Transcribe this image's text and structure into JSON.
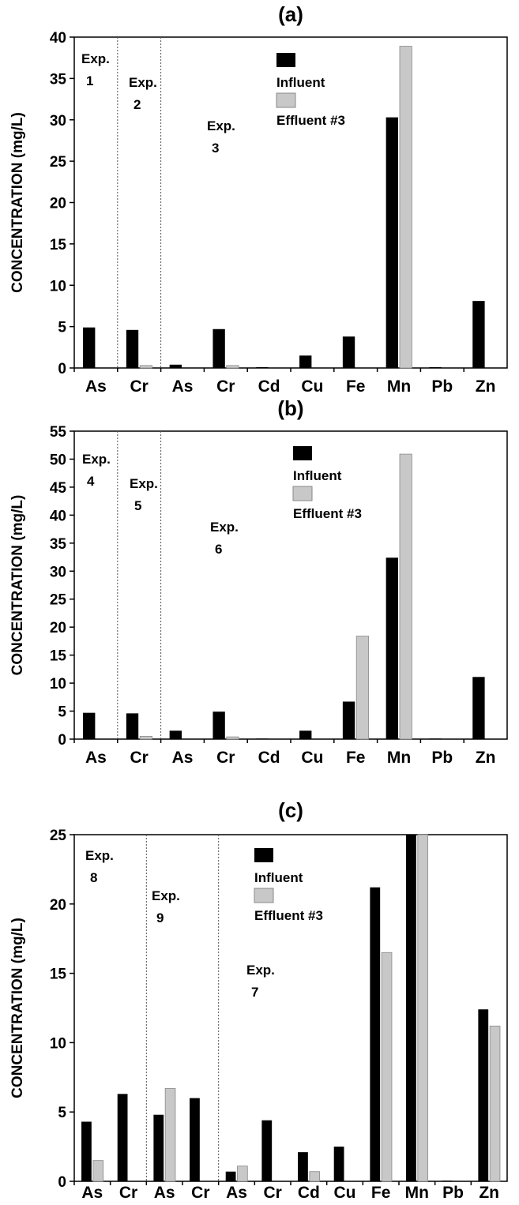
{
  "colors": {
    "influent": "#000000",
    "effluent": "#c8c8c8",
    "axis": "#000000",
    "divider": "#555555"
  },
  "chart_data": [
    {
      "type": "bar",
      "title": "(a)",
      "ylabel": "CONCENTRATION (mg/L)",
      "ylim": [
        0,
        40
      ],
      "yticks": [
        0,
        5,
        10,
        15,
        20,
        25,
        30,
        35,
        40
      ],
      "categories": [
        "As",
        "Cr",
        "As",
        "Cr",
        "Cd",
        "Cu",
        "Fe",
        "Mn",
        "Pb",
        "Zn"
      ],
      "series": [
        {
          "name": "Influent",
          "values": [
            4.9,
            4.6,
            0.4,
            4.7,
            0.1,
            1.5,
            3.8,
            30.3,
            0.1,
            8.1
          ]
        },
        {
          "name": "Effluent #3",
          "values": [
            0,
            0.3,
            0,
            0.3,
            0,
            0,
            0,
            38.9,
            0,
            0
          ]
        }
      ],
      "dividers_after": [
        0,
        1
      ],
      "annotations": [
        {
          "line1": "Exp.",
          "line2": "1"
        },
        {
          "line1": "Exp.",
          "line2": "2"
        },
        {
          "line1": "Exp.",
          "line2": "3"
        }
      ],
      "legend": [
        "Influent",
        "Effluent #3"
      ]
    },
    {
      "type": "bar",
      "title": "(b)",
      "ylabel": "CONCENTRATION (mg/L)",
      "ylim": [
        0,
        55
      ],
      "yticks": [
        0,
        5,
        10,
        15,
        20,
        25,
        30,
        35,
        40,
        45,
        50,
        55
      ],
      "categories": [
        "As",
        "Cr",
        "As",
        "Cr",
        "Cd",
        "Cu",
        "Fe",
        "Mn",
        "Pb",
        "Zn"
      ],
      "series": [
        {
          "name": "Influent",
          "values": [
            4.7,
            4.6,
            1.5,
            4.9,
            0.1,
            1.5,
            6.7,
            32.4,
            0.1,
            11.1
          ]
        },
        {
          "name": "Effluent #3",
          "values": [
            0,
            0.5,
            0,
            0.4,
            0,
            0,
            18.4,
            50.9,
            0,
            0
          ]
        }
      ],
      "dividers_after": [
        0,
        1
      ],
      "annotations": [
        {
          "line1": "Exp.",
          "line2": "4"
        },
        {
          "line1": "Exp.",
          "line2": "5"
        },
        {
          "line1": "Exp.",
          "line2": "6"
        }
      ],
      "legend": [
        "Influent",
        "Effluent #3"
      ]
    },
    {
      "type": "bar",
      "title": "(c)",
      "ylabel": "CONCENTRATION (mg/L)",
      "ylim": [
        0,
        25
      ],
      "yticks": [
        0,
        5,
        10,
        15,
        20,
        25
      ],
      "categories": [
        "As",
        "Cr",
        "As",
        "Cr",
        "As",
        "Cr",
        "Cd",
        "Cu",
        "Fe",
        "Mn",
        "Pb",
        "Zn"
      ],
      "series": [
        {
          "name": "Influent",
          "values": [
            4.3,
            6.3,
            4.8,
            6.0,
            0.7,
            4.4,
            2.1,
            2.5,
            21.2,
            25.0,
            0.05,
            12.4
          ]
        },
        {
          "name": "Effluent #3",
          "values": [
            1.5,
            0,
            6.7,
            0,
            1.1,
            0,
            0.7,
            0,
            16.5,
            25.0,
            0,
            11.2
          ]
        }
      ],
      "dividers_after": [
        1,
        3
      ],
      "annotations": [
        {
          "line1": "Exp.",
          "line2": "8"
        },
        {
          "line1": "Exp.",
          "line2": "9"
        },
        {
          "line1": "Exp.",
          "line2": "7"
        }
      ],
      "legend": [
        "Influent",
        "Effluent #3"
      ]
    }
  ]
}
